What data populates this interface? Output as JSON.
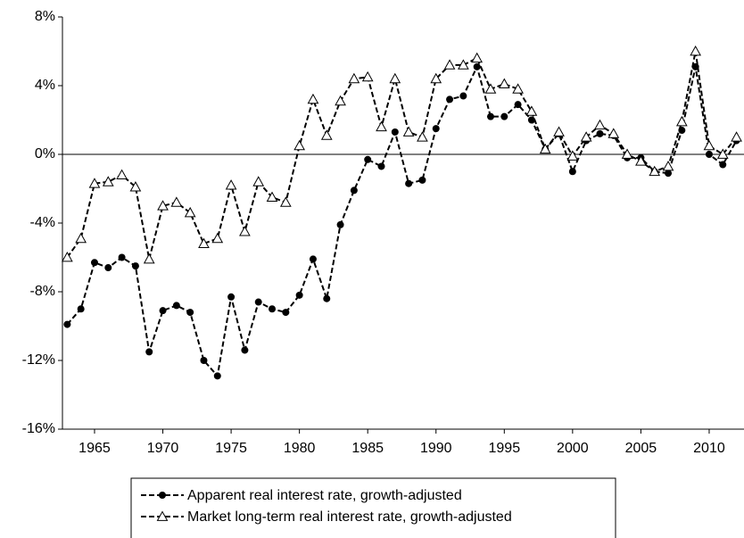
{
  "chart_data": {
    "type": "line",
    "x": [
      1963,
      1964,
      1965,
      1966,
      1967,
      1968,
      1969,
      1970,
      1971,
      1972,
      1973,
      1974,
      1975,
      1976,
      1977,
      1978,
      1979,
      1980,
      1981,
      1982,
      1983,
      1984,
      1985,
      1986,
      1987,
      1988,
      1989,
      1990,
      1991,
      1992,
      1993,
      1994,
      1995,
      1996,
      1997,
      1998,
      1999,
      2000,
      2001,
      2002,
      2003,
      2004,
      2005,
      2006,
      2007,
      2008,
      2009,
      2010,
      2011,
      2012
    ],
    "series": [
      {
        "name": "Apparent real interest rate, growth-adjusted",
        "color": "#000000",
        "marker": "circle",
        "line_style": "dashed",
        "values": [
          -9.9,
          -9.0,
          -6.3,
          -6.6,
          -6.0,
          -6.5,
          -11.5,
          -9.1,
          -8.8,
          -9.2,
          -12.0,
          -12.9,
          -8.3,
          -11.4,
          -8.6,
          -9.0,
          -9.2,
          -8.2,
          -6.1,
          -8.4,
          -4.1,
          -2.1,
          -0.3,
          -0.7,
          1.3,
          -1.7,
          -1.5,
          1.5,
          3.2,
          3.4,
          5.1,
          2.2,
          2.2,
          2.9,
          2.0,
          0.3,
          1.2,
          -1.0,
          0.8,
          1.2,
          1.1,
          -0.2,
          -0.2,
          -1.0,
          -1.1,
          1.4,
          5.1,
          0.0,
          -0.6,
          0.8
        ]
      },
      {
        "name": "Market long-term real interest rate, growth-adjusted",
        "color": "#000000",
        "marker": "triangle",
        "line_style": "dashed",
        "values": [
          -6.0,
          -4.9,
          -1.7,
          -1.6,
          -1.2,
          -1.9,
          -6.1,
          -3.0,
          -2.8,
          -3.4,
          -5.2,
          -4.9,
          -1.8,
          -4.5,
          -1.6,
          -2.5,
          -2.8,
          0.5,
          3.2,
          1.1,
          3.1,
          4.4,
          4.5,
          1.6,
          4.4,
          1.3,
          1.0,
          4.4,
          5.2,
          5.2,
          5.6,
          3.8,
          4.1,
          3.8,
          2.5,
          0.3,
          1.3,
          -0.1,
          1.0,
          1.7,
          1.2,
          0.0,
          -0.4,
          -1.0,
          -0.7,
          1.9,
          6.0,
          0.5,
          0.0,
          1.0
        ]
      }
    ],
    "xlim": [
      1962.65,
      2012.55
    ],
    "xticks": [
      1965,
      1970,
      1975,
      1980,
      1985,
      1990,
      1995,
      2000,
      2005,
      2010
    ],
    "ylim": [
      -16,
      8
    ],
    "yticks": [
      {
        "value": -16,
        "label": "-16%"
      },
      {
        "value": -12,
        "label": "-12%"
      },
      {
        "value": -8,
        "label": "-8%"
      },
      {
        "value": -4,
        "label": "-4%"
      },
      {
        "value": 0,
        "label": "0%"
      },
      {
        "value": 4,
        "label": "4%"
      },
      {
        "value": 8,
        "label": "8%"
      }
    ],
    "zero_line": true,
    "grid": false,
    "legend": "bottom"
  }
}
